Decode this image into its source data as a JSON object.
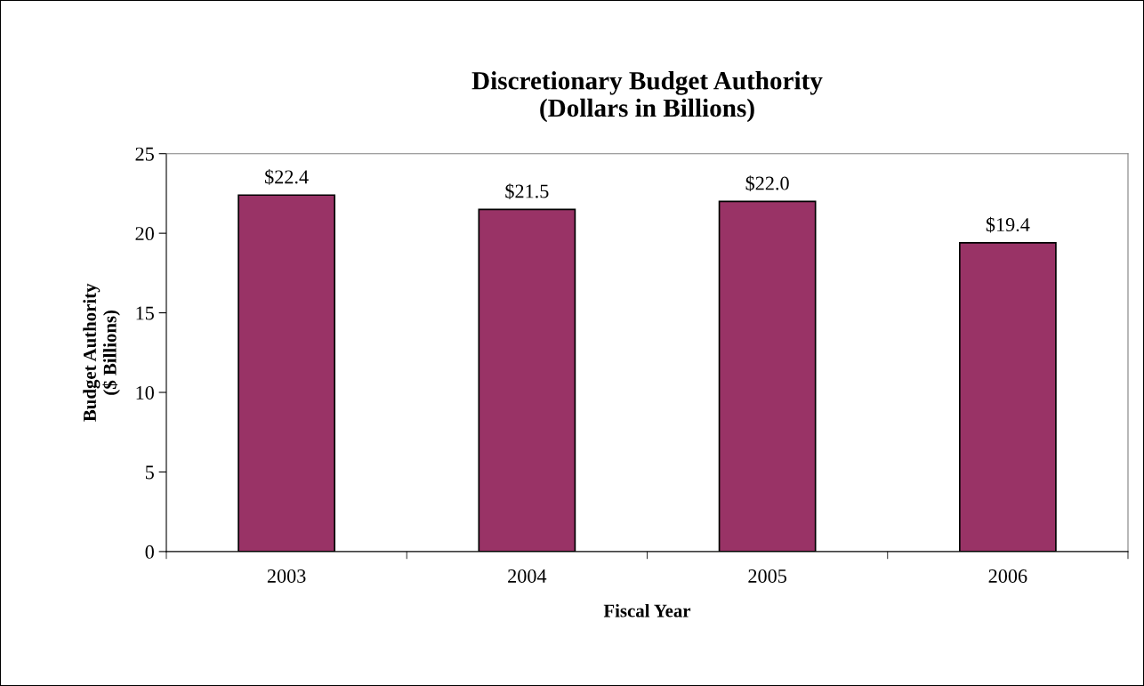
{
  "chart_data": {
    "type": "bar",
    "title": "Discretionary Budget Authority\n(Dollars in Billions)",
    "xlabel": "Fiscal Year",
    "ylabel": "Budget Authority\n($ Billions)",
    "categories": [
      "2003",
      "2004",
      "2005",
      "2006"
    ],
    "values": [
      22.4,
      21.5,
      22.0,
      19.4
    ],
    "value_labels": [
      "$22.4",
      "$21.5",
      "$22.0",
      "$19.4"
    ],
    "color": "#993366",
    "ylim": [
      0,
      25
    ],
    "yticks": [
      0,
      5,
      10,
      15,
      20,
      25
    ],
    "grid": false,
    "legend": false
  }
}
